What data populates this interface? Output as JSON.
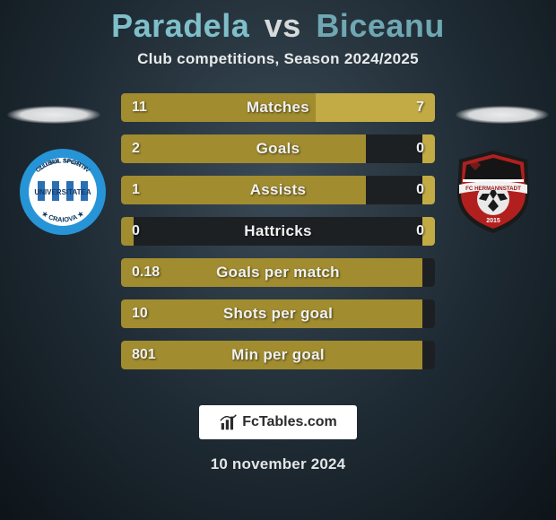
{
  "title": {
    "player1": "Paradela",
    "vs": "vs",
    "player2": "Biceanu",
    "color_p1": "#7fbfc9",
    "color_vs": "#d6dadb",
    "color_p2": "#6fa8b2"
  },
  "subtitle": "Club competitions, Season 2024/2025",
  "date": "10 november 2024",
  "footer_brand": "FcTables.com",
  "bar_style": {
    "left_color": "#a18c2f",
    "right_color": "#c2ab45",
    "track_color": "#1d2023",
    "height": 32,
    "gap": 14,
    "label_fontsize": 17,
    "value_fontsize": 16
  },
  "stats": [
    {
      "label": "Matches",
      "left_val": "11",
      "right_val": "7",
      "left_pct": 62,
      "right_pct": 38
    },
    {
      "label": "Goals",
      "left_val": "2",
      "right_val": "0",
      "left_pct": 78,
      "right_pct": 4
    },
    {
      "label": "Assists",
      "left_val": "1",
      "right_val": "0",
      "left_pct": 78,
      "right_pct": 4
    },
    {
      "label": "Hattricks",
      "left_val": "0",
      "right_val": "0",
      "left_pct": 4,
      "right_pct": 4
    },
    {
      "label": "Goals per match",
      "left_val": "0.18",
      "right_val": "",
      "left_pct": 96,
      "right_pct": 0
    },
    {
      "label": "Shots per goal",
      "left_val": "10",
      "right_val": "",
      "left_pct": 96,
      "right_pct": 0
    },
    {
      "label": "Min per goal",
      "left_val": "801",
      "right_val": "",
      "left_pct": 96,
      "right_pct": 0
    }
  ],
  "badges": {
    "left": {
      "name": "universitatea-craiova-badge",
      "ring_color": "#2694d6",
      "inner_color": "#ffffff",
      "stripes": [
        "#2a6fb3",
        "#ffffff",
        "#2a6fb3",
        "#ffffff",
        "#2a6fb3",
        "#ffffff",
        "#2a6fb3"
      ],
      "top_text": "CLUBUL SPORTIV",
      "mid_text": "UNIVERSITATEA",
      "bottom_text": "CRAIOVA"
    },
    "right": {
      "name": "fc-hermannstadt-badge",
      "shield_color": "#b1201f",
      "border_color": "#1a1a1a",
      "ball_color": "#e9e9e9",
      "banner_text": "FC HERMANNSTADT",
      "year": "2015"
    }
  }
}
